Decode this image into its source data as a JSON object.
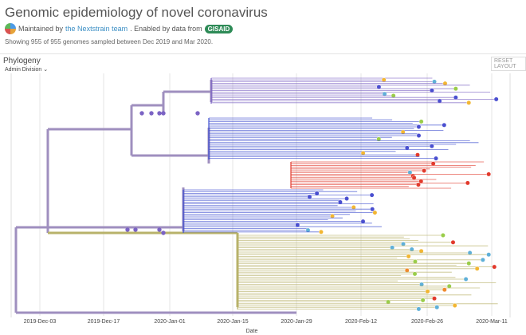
{
  "header": {
    "title": "Genomic epidemiology of novel coronavirus",
    "maintained_prefix": "Maintained by",
    "maintainer_link": "the Nextstrain team",
    "enabled_text": ". Enabled by data from",
    "gisaid_logo": "GISAID",
    "showing": "Showing 955 of 955 genomes sampled between Dec 2019 and Mar 2020."
  },
  "panel": {
    "title": "Phylogeny",
    "filter_label": "Admin Division",
    "reset_label": "RESET LAYOUT"
  },
  "axis": {
    "ticks": [
      "2019-Dec-03",
      "2019-Dec-17",
      "2020-Jan-01",
      "2020-Jan-15",
      "2020-Jan-29",
      "2020-Feb-12",
      "2020-Feb-26",
      "2020-Mar-11"
    ],
    "title": "Date"
  },
  "colors": {
    "root_branch": "#9f8fbf",
    "purple_clade": "#7b63c4",
    "blue_clade": "#3f4fd0",
    "red_clade": "#e23a2c",
    "olive_clade": "#b8b26a",
    "tip_colors": [
      "#4a4fd0",
      "#e23a2c",
      "#f2b632",
      "#9acd4a",
      "#5fb0d8",
      "#f08a2e"
    ]
  }
}
